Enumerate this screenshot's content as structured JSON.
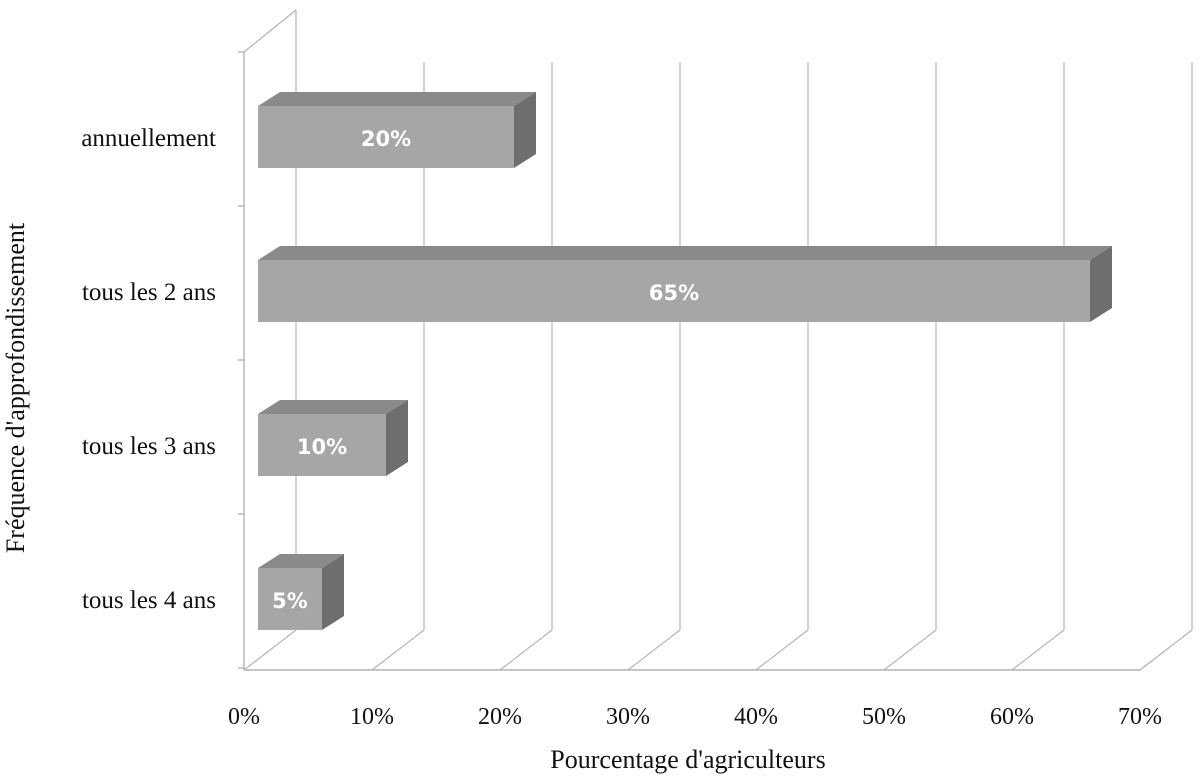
{
  "chart_data": {
    "type": "bar",
    "orientation": "horizontal",
    "style": "3d",
    "categories": [
      "annuellement",
      "tous les 2 ans",
      "tous les 3 ans",
      "tous les 4 ans"
    ],
    "values": [
      20,
      65,
      10,
      5
    ],
    "data_labels": [
      "20%",
      "65%",
      "10%",
      "5%"
    ],
    "title": "",
    "xlabel": "Pourcentage d'agriculteurs",
    "ylabel": "Fréquence d'approfondissement",
    "xlim": [
      0,
      70
    ],
    "x_ticks": [
      "0%",
      "10%",
      "20%",
      "30%",
      "40%",
      "50%",
      "60%",
      "70%"
    ],
    "grid": true,
    "legend": "none",
    "colors": {
      "bar_front": "#a6a6a6",
      "bar_top": "#8a8a8a",
      "bar_side": "#6e6e6e",
      "grid": "#b4b4b4",
      "data_label": "#ffffff",
      "text": "#111111"
    }
  }
}
